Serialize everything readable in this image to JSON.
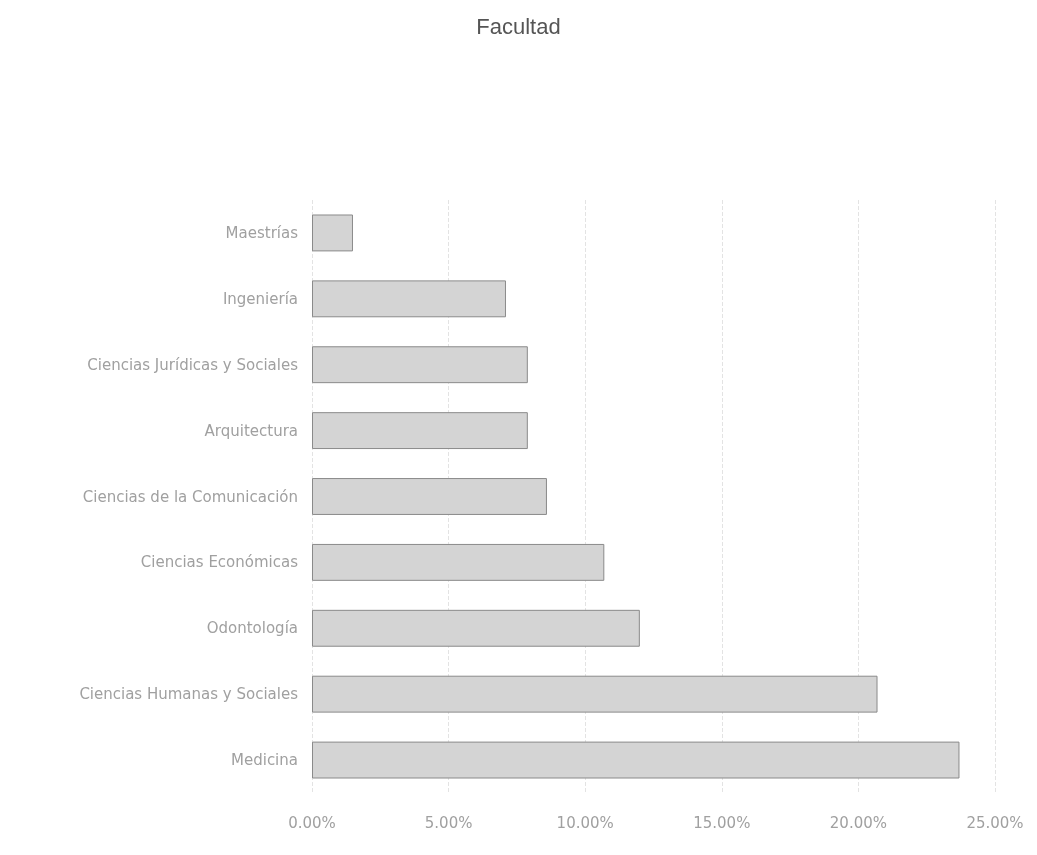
{
  "chart_data": {
    "type": "bar",
    "orientation": "horizontal",
    "title": "Facultad",
    "categories": [
      "Maestrías",
      "Ingeniería",
      "Ciencias Jurídicas y Sociales",
      "Arquitectura",
      "Ciencias de la Comunicación",
      "Ciencias Económicas",
      "Odontología",
      "Ciencias Humanas y Sociales",
      "Medicina"
    ],
    "values": [
      1.5,
      7.1,
      7.9,
      7.9,
      8.6,
      10.7,
      12.0,
      20.7,
      23.7
    ],
    "color": "#d4d4d4",
    "xlim": [
      0,
      25
    ],
    "xticks": [
      {
        "value": 0,
        "label": "0.00%"
      },
      {
        "value": 5,
        "label": "5.00%"
      },
      {
        "value": 10,
        "label": "10.00%"
      },
      {
        "value": 15,
        "label": "15.00%"
      },
      {
        "value": 20,
        "label": "20.00%"
      },
      {
        "value": 25,
        "label": "25.00%"
      }
    ],
    "grid": "x"
  }
}
